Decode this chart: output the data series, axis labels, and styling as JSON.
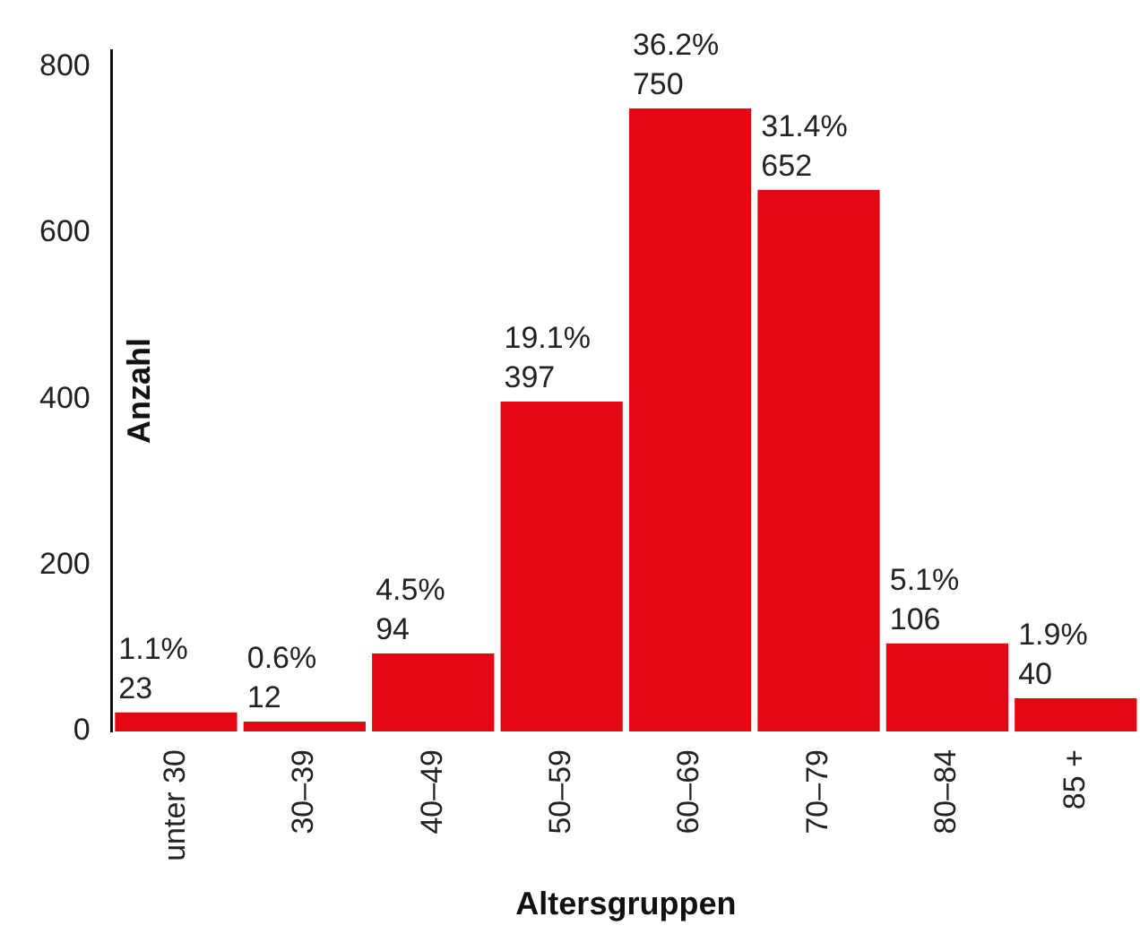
{
  "chart_data": {
    "type": "bar",
    "xlabel": "Altersgruppen",
    "ylabel": "Anzahl",
    "categories": [
      "unter 30",
      "30–39",
      "40–49",
      "50–59",
      "60–69",
      "70–79",
      "80–84",
      "85 +"
    ],
    "values": [
      23,
      12,
      94,
      397,
      750,
      652,
      106,
      40
    ],
    "value_labels": [
      "1.1%\n23",
      "0.6%\n12",
      "4.5%\n94",
      "19.1%\n397",
      "36.2%\n750",
      "31.4%\n652",
      "5.1%\n106",
      "1.9%\n40"
    ],
    "color": "#e30613",
    "ylim": [
      0,
      820
    ],
    "yticks": [
      0,
      200,
      400,
      600,
      800
    ],
    "grid": false,
    "legend": false
  }
}
